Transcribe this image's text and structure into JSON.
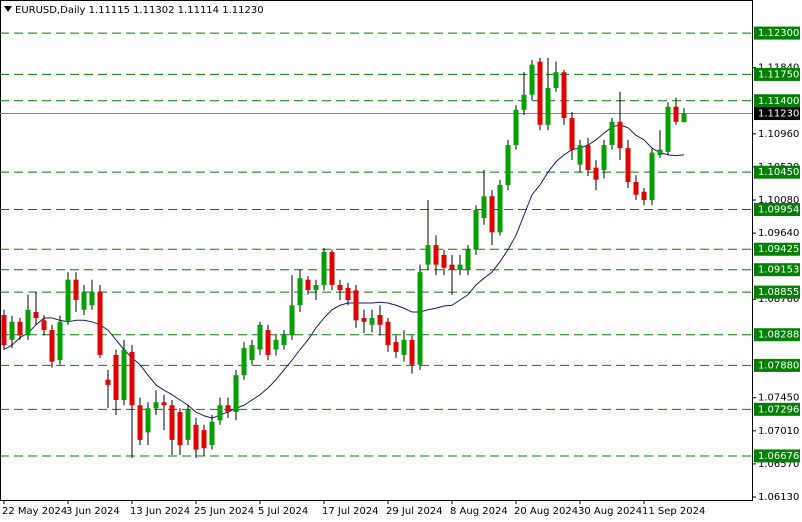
{
  "chart_data": {
    "type": "candlestick",
    "title": "EURUSD,Daily  1.11115 1.11302 1.11114 1.11230",
    "categories": [
      "22 May 2024",
      null,
      null,
      null,
      null,
      null,
      null,
      null,
      "3 Jun 2024",
      null,
      null,
      null,
      null,
      null,
      null,
      null,
      "13 Jun 2024",
      null,
      null,
      null,
      null,
      null,
      null,
      null,
      "25 Jun 2024",
      null,
      null,
      null,
      null,
      null,
      null,
      null,
      "5 Jul 2024",
      null,
      null,
      null,
      null,
      null,
      null,
      null,
      "17 Jul 2024",
      null,
      null,
      null,
      null,
      null,
      null,
      null,
      "29 Jul 2024",
      null,
      null,
      null,
      null,
      null,
      null,
      null,
      "8 Aug 2024",
      null,
      null,
      null,
      null,
      null,
      null,
      null,
      "20 Aug 2024",
      null,
      null,
      null,
      null,
      null,
      null,
      null,
      "30 Aug 2024",
      null,
      null,
      null,
      null,
      null,
      null,
      null,
      "11 Sep 2024",
      null,
      null,
      null,
      null,
      null
    ],
    "open": [
      1.0855,
      1.0822,
      1.0846,
      1.0828,
      1.0859,
      1.0848,
      1.0835,
      1.0795,
      1.0846,
      1.0902,
      1.0862,
      1.0868,
      1.0886,
      1.0769,
      1.0802,
      1.0742,
      1.0806,
      1.0735,
      1.0699,
      1.0731,
      1.0739,
      1.0735,
      1.0726,
      1.0689,
      1.0709,
      1.0702,
      1.0682,
      1.0715,
      1.0735,
      1.0726,
      1.0775,
      1.0795,
      1.0809,
      1.0835,
      1.0809,
      1.0815,
      1.0828,
      1.0868,
      1.0902,
      1.0888,
      1.0895,
      1.0939,
      1.0895,
      1.0891,
      1.0888,
      1.0851,
      1.0842,
      1.0855,
      1.0846,
      1.0819,
      1.0802,
      1.0822,
      1.0789,
      1.0922,
      1.0948,
      1.0935,
      1.0922,
      1.0915,
      1.0915,
      1.0942,
      1.0984,
      1.1013,
      1.0965,
      1.1028,
      1.1081,
      1.1128,
      1.1148,
      1.1192,
      1.1108,
      1.1157,
      1.1178,
      1.1117,
      1.1055,
      1.1081,
      1.1051,
      1.1048,
      1.1081,
      1.1112,
      1.1077,
      1.1032,
      1.1019,
      1.1008,
      1.1068,
      1.1072,
      1.1132,
      1.11115
    ],
    "high": [
      1.0862,
      1.0854,
      1.0851,
      1.0882,
      1.0886,
      1.0855,
      1.0842,
      1.0854,
      1.0912,
      1.0912,
      1.0895,
      1.0902,
      1.0895,
      1.0782,
      1.0809,
      1.0822,
      1.0815,
      1.0745,
      1.0739,
      1.0755,
      1.0749,
      1.0742,
      1.0731,
      1.0735,
      1.0718,
      1.0709,
      1.0722,
      1.0745,
      1.0745,
      1.0782,
      1.0819,
      1.0822,
      1.0846,
      1.0842,
      1.083,
      1.0835,
      1.0908,
      1.0915,
      1.0907,
      1.0902,
      1.0944,
      1.0942,
      1.0902,
      1.0898,
      1.0895,
      1.0862,
      1.0862,
      1.0868,
      1.0851,
      1.0828,
      1.0835,
      1.0828,
      1.0922,
      1.1008,
      1.0961,
      1.0942,
      1.0935,
      1.0935,
      1.0948,
      1.1001,
      1.1048,
      1.1021,
      1.1035,
      1.1088,
      1.1134,
      1.1178,
      1.1194,
      1.1197,
      1.1197,
      1.1192,
      1.1181,
      1.1125,
      1.1088,
      1.1091,
      1.1061,
      1.1088,
      1.1117,
      1.1152,
      1.1088,
      1.1041,
      1.1024,
      1.1077,
      1.1101,
      1.1138,
      1.1144,
      1.11302
    ],
    "low": [
      1.0809,
      1.0811,
      1.0822,
      1.0822,
      1.0842,
      1.0828,
      1.0785,
      1.0789,
      1.0842,
      1.0859,
      1.0855,
      1.0862,
      1.0798,
      1.0731,
      1.0722,
      1.0735,
      1.0665,
      1.0682,
      1.0682,
      1.0722,
      1.0702,
      1.0669,
      1.0669,
      1.0682,
      1.0665,
      1.0668,
      1.0676,
      1.0709,
      1.0718,
      1.0715,
      1.0769,
      1.0789,
      1.0802,
      1.0795,
      1.0801,
      1.0809,
      1.0822,
      1.0859,
      1.0882,
      1.0875,
      1.0888,
      1.0888,
      1.0875,
      1.0868,
      1.0838,
      1.0831,
      1.0832,
      1.0828,
      1.0806,
      1.0798,
      1.0793,
      1.0777,
      1.0782,
      1.0915,
      1.0908,
      1.0908,
      1.0882,
      1.0908,
      1.0908,
      1.0935,
      1.0975,
      1.0948,
      1.0961,
      1.1021,
      1.1075,
      1.1121,
      1.1141,
      1.1101,
      1.1101,
      1.1152,
      1.1108,
      1.1061,
      1.1045,
      1.104,
      1.1021,
      1.1037,
      1.1075,
      1.1061,
      1.1024,
      1.1008,
      1.1001,
      1.1001,
      1.1064,
      1.1068,
      1.1108,
      1.11114
    ],
    "close": [
      1.0815,
      1.0846,
      1.0828,
      1.0862,
      1.0851,
      1.0835,
      1.0793,
      1.0846,
      1.0902,
      1.0875,
      1.0886,
      1.0886,
      1.0802,
      1.0762,
      1.0742,
      1.0809,
      1.0735,
      1.0689,
      1.0731,
      1.0739,
      1.0735,
      1.0689,
      1.0682,
      1.0729,
      1.0676,
      1.0678,
      1.0713,
      1.0735,
      1.0726,
      1.0775,
      1.0811,
      1.0815,
      1.0842,
      1.0802,
      1.0822,
      1.0828,
      1.0868,
      1.0904,
      1.0888,
      1.0895,
      1.0939,
      1.0895,
      1.0888,
      1.0875,
      1.0848,
      1.0846,
      1.0851,
      1.0842,
      1.0815,
      1.0806,
      1.0822,
      1.0789,
      1.0912,
      1.0948,
      1.0922,
      1.0918,
      1.0915,
      1.0922,
      1.0942,
      1.0995,
      1.1013,
      1.0965,
      1.1028,
      1.1081,
      1.1128,
      1.1148,
      1.1188,
      1.1108,
      1.1157,
      1.1178,
      1.1117,
      1.1075,
      1.1081,
      1.1048,
      1.1035,
      1.1081,
      1.1112,
      1.1077,
      1.1032,
      1.1015,
      1.1008,
      1.1071,
      1.1075,
      1.1132,
      1.1112,
      1.1123
    ],
    "up_color": "#00a000",
    "down_color": "#e00000",
    "ma": {
      "color": "#1b1b6b",
      "values": [
        1.0809,
        1.0815,
        1.0825,
        1.0831,
        1.0842,
        1.0851,
        1.0851,
        1.0848,
        1.0846,
        1.0848,
        1.0848,
        1.0846,
        1.0842,
        1.0835,
        1.0822,
        1.0809,
        1.0798,
        1.0789,
        1.0775,
        1.0762,
        1.0755,
        1.0749,
        1.0742,
        1.0735,
        1.0726,
        1.0721,
        1.0718,
        1.0722,
        1.0726,
        1.0731,
        1.0735,
        1.0742,
        1.0749,
        1.0758,
        1.0769,
        1.0782,
        1.0795,
        1.0809,
        1.0822,
        1.0838,
        1.0851,
        1.0862,
        1.0868,
        1.0871,
        1.0871,
        1.0871,
        1.0871,
        1.0872,
        1.0871,
        1.0868,
        1.0864,
        1.0859,
        1.0859,
        1.0862,
        1.0864,
        1.0867,
        1.0868,
        1.0875,
        1.0882,
        1.0895,
        1.0904,
        1.0912,
        1.0926,
        1.0942,
        1.0961,
        1.0988,
        1.1015,
        1.1028,
        1.1045,
        1.1059,
        1.1068,
        1.1075,
        1.1077,
        1.1081,
        1.1088,
        1.1097,
        1.1105,
        1.1108,
        1.1104,
        1.1094,
        1.1088,
        1.1077,
        1.1071,
        1.1068,
        1.1067,
        1.1068
      ]
    },
    "ylim": [
      1.0609,
      1.1274
    ],
    "yticks": [
      {
        "value": 1.1184,
        "label": "1.11840"
      },
      {
        "value": 1.1096,
        "label": "1.10960"
      },
      {
        "value": 1.1052,
        "label": "1.10520"
      },
      {
        "value": 1.1008,
        "label": "1.10080"
      },
      {
        "value": 1.0964,
        "label": "1.09640"
      },
      {
        "value": 1.0876,
        "label": "1.08760"
      },
      {
        "value": 1.0745,
        "label": "1.07450"
      },
      {
        "value": 1.0701,
        "label": "1.07010"
      },
      {
        "value": 1.0657,
        "label": "1.06570"
      },
      {
        "value": 1.0613,
        "label": "1.06130"
      }
    ],
    "levels": [
      {
        "value": 1.123,
        "label": "1.12300"
      },
      {
        "value": 1.1175,
        "label": "1.11750"
      },
      {
        "value": 1.114,
        "label": "1.11400"
      },
      {
        "value": 1.1045,
        "label": "1.10450"
      },
      1.09954,
      1.09425,
      1.09153,
      1.08855,
      1.08288,
      {
        "value": 1.0788,
        "label": "1.07880"
      },
      1.07296,
      1.06676
    ],
    "level_color": "#008000",
    "current_price": {
      "value": 1.1123,
      "label": "1.11230"
    }
  }
}
